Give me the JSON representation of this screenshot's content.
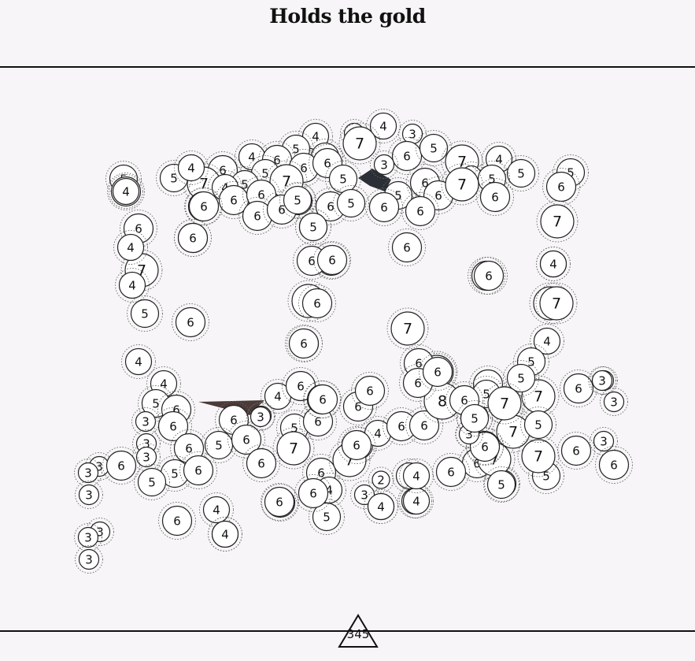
{
  "header": {
    "title": "Holds the gold"
  },
  "footer": {
    "counter_value": "345"
  },
  "colors": {
    "background": "#f7f5f7",
    "disc_fill": "#ffffff",
    "disc_stroke": "#222222",
    "dark_shard": "#2b2f36",
    "brown_shard": "#4a3a38"
  },
  "board": {
    "discs": [
      {
        "v": 4
      },
      {
        "v": 3
      },
      {
        "v": 4
      },
      {
        "v": 3
      },
      {
        "v": 7
      },
      {
        "v": 5
      },
      {
        "v": 5
      },
      {
        "v": 6
      },
      {
        "v": 5
      },
      {
        "v": 3
      },
      {
        "v": 7
      },
      {
        "v": 4
      },
      {
        "v": 3
      },
      {
        "v": 5
      },
      {
        "v": 5
      },
      {
        "v": 4
      },
      {
        "v": 6
      },
      {
        "v": 6
      },
      {
        "v": 7
      },
      {
        "v": 5
      },
      {
        "v": 6
      },
      {
        "v": 6
      },
      {
        "v": 5
      },
      {
        "v": 7
      },
      {
        "v": 5
      },
      {
        "v": 5
      },
      {
        "v": 4
      },
      {
        "v": 5
      },
      {
        "v": 6
      },
      {
        "v": 4
      },
      {
        "v": 6
      },
      {
        "v": 7
      },
      {
        "v": 6
      },
      {
        "v": 5
      },
      {
        "v": 6
      },
      {
        "v": 5
      },
      {
        "v": 6
      },
      {
        "v": 6
      },
      {
        "v": 6
      },
      {
        "v": 5
      },
      {
        "v": 6
      },
      {
        "v": 5
      },
      {
        "v": 6
      },
      {
        "v": 6
      },
      {
        "v": 6
      },
      {
        "v": 6
      },
      {
        "v": 6
      },
      {
        "v": 7
      },
      {
        "v": 7
      },
      {
        "v": 6
      },
      {
        "v": 4
      },
      {
        "v": 6
      },
      {
        "v": 6
      },
      {
        "v": 4
      },
      {
        "v": 7
      },
      {
        "v": 4
      },
      {
        "v": 5
      },
      {
        "v": 7
      },
      {
        "v": 6
      },
      {
        "v": 7
      },
      {
        "v": 6
      },
      {
        "v": 5
      },
      {
        "v": 6
      },
      {
        "v": 6
      },
      {
        "v": 5
      },
      {
        "v": 6
      },
      {
        "v": 4
      },
      {
        "v": 4
      },
      {
        "v": 7
      },
      {
        "v": 6
      },
      {
        "v": 4
      },
      {
        "v": 5
      },
      {
        "v": 4
      },
      {
        "v": 5
      },
      {
        "v": 6
      },
      {
        "v": 3
      },
      {
        "v": 6
      },
      {
        "v": 6
      },
      {
        "v": 3
      },
      {
        "v": 5
      },
      {
        "v": 3
      },
      {
        "v": 3
      },
      {
        "v": 5
      },
      {
        "v": 6
      },
      {
        "v": 6
      },
      {
        "v": 6
      },
      {
        "v": 5
      },
      {
        "v": 6
      },
      {
        "v": 6
      },
      {
        "v": 7
      },
      {
        "v": 6
      },
      {
        "v": 6
      },
      {
        "v": 6
      },
      {
        "v": 6
      },
      {
        "v": 5
      },
      {
        "v": 4
      },
      {
        "v": 6
      },
      {
        "v": 4
      },
      {
        "v": 4
      },
      {
        "v": 7
      },
      {
        "v": 5
      },
      {
        "v": 6
      },
      {
        "v": 4
      },
      {
        "v": 3
      },
      {
        "v": 6
      },
      {
        "v": 6
      },
      {
        "v": 2
      },
      {
        "v": 6
      },
      {
        "v": 6
      },
      {
        "v": 7
      },
      {
        "v": 6
      },
      {
        "v": 6
      },
      {
        "v": 8
      },
      {
        "v": 6
      },
      {
        "v": 6
      },
      {
        "v": 5
      },
      {
        "v": 5
      },
      {
        "v": 5
      },
      {
        "v": 7
      },
      {
        "v": 5
      },
      {
        "v": 7
      },
      {
        "v": 7
      },
      {
        "v": 6
      },
      {
        "v": 4
      },
      {
        "v": 6
      },
      {
        "v": 5
      },
      {
        "v": 6
      },
      {
        "v": 5
      },
      {
        "v": 7
      },
      {
        "v": 3
      },
      {
        "v": 6
      },
      {
        "v": 6
      },
      {
        "v": 3
      },
      {
        "v": 3
      },
      {
        "v": 3
      },
      {
        "v": 6
      },
      {
        "v": 3
      },
      {
        "v": 3
      },
      {
        "v": 3
      },
      {
        "v": 3
      },
      {
        "v": 3
      },
      {
        "v": 3
      },
      {
        "v": 3
      },
      {
        "v": 5
      },
      {
        "v": 6
      },
      {
        "v": 6
      },
      {
        "v": 4
      },
      {
        "v": 4
      },
      {
        "v": 4
      },
      {
        "v": 4
      },
      {
        "v": 6
      },
      {
        "v": 5
      },
      {
        "v": 4
      },
      {
        "v": 6
      },
      {
        "v": 4
      },
      {
        "v": 6
      },
      {
        "v": 3
      },
      {
        "v": 5
      },
      {
        "v": 7
      },
      {
        "v": 6
      },
      {
        "v": 6
      },
      {
        "v": 6
      },
      {
        "v": 4
      },
      {
        "v": 5
      },
      {
        "v": 6
      },
      {
        "v": 4
      },
      {
        "v": 3
      },
      {
        "v": 6
      },
      {
        "v": 6
      },
      {
        "v": 5
      }
    ]
  }
}
